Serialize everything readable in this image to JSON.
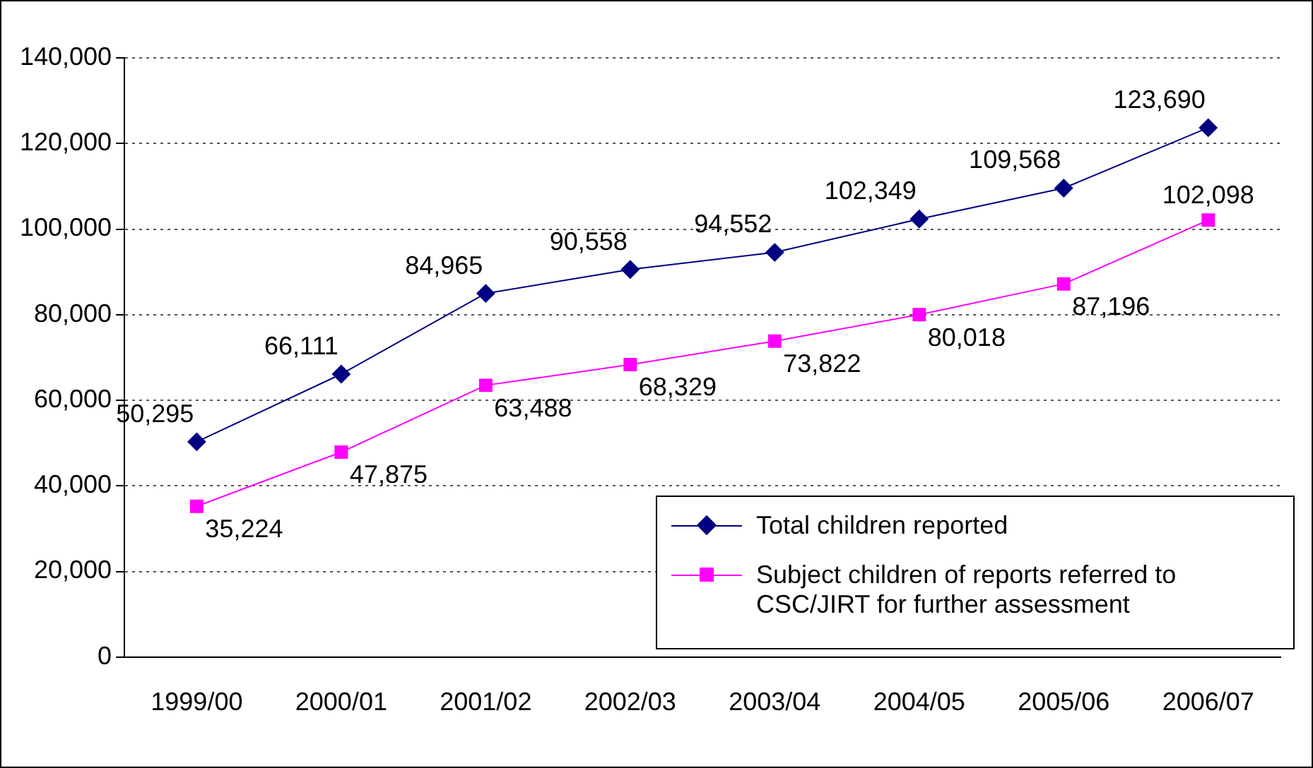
{
  "chart_data": {
    "type": "line",
    "categories": [
      "1999/00",
      "2000/01",
      "2001/02",
      "2002/03",
      "2003/04",
      "2004/05",
      "2005/06",
      "2006/07"
    ],
    "series": [
      {
        "name": "Total children reported",
        "color": "#000080",
        "marker": "diamond",
        "values": [
          50295,
          66111,
          84965,
          90558,
          94552,
          102349,
          109568,
          123690
        ],
        "value_labels": [
          "50,295",
          "66,111",
          "84,965",
          "90,558",
          "94,552",
          "102,349",
          "109,568",
          "123,690"
        ]
      },
      {
        "name": "Subject children of reports referred to CSC/JIRT for further assessment",
        "color": "#ff00ff",
        "marker": "square",
        "values": [
          35224,
          47875,
          63488,
          68329,
          73822,
          80018,
          87196,
          102098
        ],
        "value_labels": [
          "35,224",
          "47,875",
          "63,488",
          "68,329",
          "73,822",
          "80,018",
          "87,196",
          "102,098"
        ]
      }
    ],
    "ylim": [
      0,
      140000
    ],
    "yticks": [
      {
        "value": 0,
        "label": "0"
      },
      {
        "value": 20000,
        "label": "20,000"
      },
      {
        "value": 40000,
        "label": "40,000"
      },
      {
        "value": 60000,
        "label": "60,000"
      },
      {
        "value": 80000,
        "label": "80,000"
      },
      {
        "value": 100000,
        "label": "100,000"
      },
      {
        "value": 120000,
        "label": "120,000"
      },
      {
        "value": 140000,
        "label": "140,000"
      }
    ],
    "grid": "y",
    "legend": "bottom right",
    "line_style": "solid"
  }
}
